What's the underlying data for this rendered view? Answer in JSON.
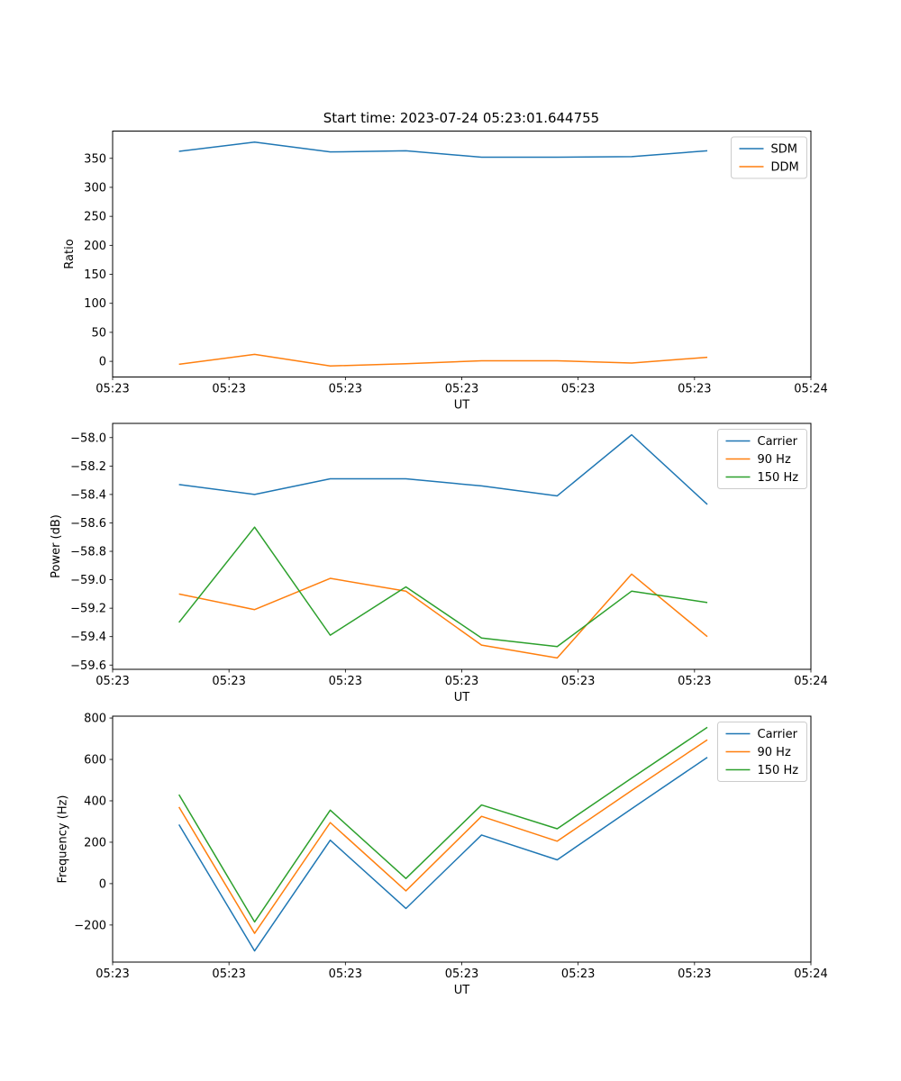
{
  "figure": {
    "title": "Start time: 2023-07-24 05:23:01.644755",
    "background": "#ffffff"
  },
  "colors": {
    "blue": "#1f77b4",
    "orange": "#ff7f0e",
    "green": "#2ca02c",
    "frame": "#000000",
    "legend_border": "#cccccc"
  },
  "chart_data": [
    {
      "type": "line",
      "title": "",
      "xlabel": "UT",
      "ylabel": "Ratio",
      "xlim_seconds": [
        0,
        60
      ],
      "xticks_seconds": [
        0,
        10,
        20,
        30,
        40,
        50,
        60
      ],
      "xtick_labels": [
        "05:23",
        "05:23",
        "05:23",
        "05:23",
        "05:23",
        "05:23",
        "05:24"
      ],
      "ylim": [
        -27,
        397
      ],
      "yticks": [
        0,
        50,
        100,
        150,
        200,
        250,
        300,
        350
      ],
      "ytick_labels": [
        "0",
        "50",
        "100",
        "150",
        "200",
        "250",
        "300",
        "350"
      ],
      "grid": false,
      "legend_position": "upper right",
      "x_seconds": [
        5.7,
        12.2,
        18.7,
        25.2,
        31.7,
        38.2,
        44.6,
        51.1
      ],
      "series": [
        {
          "name": "SDM",
          "color": "#1f77b4",
          "values": [
            362,
            378,
            361,
            363,
            352,
            352,
            353,
            363
          ]
        },
        {
          "name": "DDM",
          "color": "#ff7f0e",
          "values": [
            -5,
            12,
            -8,
            -4,
            1,
            1,
            -3,
            7
          ]
        }
      ]
    },
    {
      "type": "line",
      "title": "",
      "xlabel": "UT",
      "ylabel": "Power (dB)",
      "xlim_seconds": [
        0,
        60
      ],
      "xticks_seconds": [
        0,
        10,
        20,
        30,
        40,
        50,
        60
      ],
      "xtick_labels": [
        "05:23",
        "05:23",
        "05:23",
        "05:23",
        "05:23",
        "05:23",
        "05:24"
      ],
      "ylim": [
        -59.63,
        -57.9
      ],
      "yticks": [
        -58.0,
        -58.2,
        -58.4,
        -58.6,
        -58.8,
        -59.0,
        -59.2,
        -59.4,
        -59.6
      ],
      "ytick_labels": [
        "−58.0",
        "−58.2",
        "−58.4",
        "−58.6",
        "−58.8",
        "−59.0",
        "−59.2",
        "−59.4",
        "−59.6"
      ],
      "grid": false,
      "legend_position": "upper right",
      "x_seconds": [
        5.7,
        12.2,
        18.7,
        25.2,
        31.7,
        38.2,
        44.6,
        51.1
      ],
      "series": [
        {
          "name": "Carrier",
          "color": "#1f77b4",
          "values": [
            -58.33,
            -58.4,
            -58.29,
            -58.29,
            -58.34,
            -58.41,
            -57.98,
            -58.47
          ]
        },
        {
          "name": "90 Hz",
          "color": "#ff7f0e",
          "values": [
            -59.1,
            -59.21,
            -58.99,
            -59.08,
            -59.46,
            -59.55,
            -58.96,
            -59.4
          ]
        },
        {
          "name": "150 Hz",
          "color": "#2ca02c",
          "values": [
            -59.3,
            -58.63,
            -59.39,
            -59.05,
            -59.41,
            -59.47,
            -59.08,
            -59.16
          ]
        }
      ]
    },
    {
      "type": "line",
      "title": "",
      "xlabel": "UT",
      "ylabel": "Frequency (Hz)",
      "xlim_seconds": [
        0,
        60
      ],
      "xticks_seconds": [
        0,
        10,
        20,
        30,
        40,
        50,
        60
      ],
      "xtick_labels": [
        "05:23",
        "05:23",
        "05:23",
        "05:23",
        "05:23",
        "05:23",
        "05:24"
      ],
      "ylim": [
        -379,
        809
      ],
      "yticks": [
        -200,
        0,
        200,
        400,
        600,
        800
      ],
      "ytick_labels": [
        "−200",
        "0",
        "200",
        "400",
        "600",
        "800"
      ],
      "grid": false,
      "legend_position": "upper right",
      "x_seconds": [
        5.7,
        12.2,
        18.7,
        25.2,
        31.7,
        38.2,
        44.6,
        51.1
      ],
      "series": [
        {
          "name": "Carrier",
          "color": "#1f77b4",
          "values": [
            285,
            -325,
            210,
            -120,
            235,
            115,
            362,
            610
          ]
        },
        {
          "name": "90 Hz",
          "color": "#ff7f0e",
          "values": [
            370,
            -240,
            295,
            -35,
            325,
            205,
            450,
            695
          ]
        },
        {
          "name": "150 Hz",
          "color": "#2ca02c",
          "values": [
            430,
            -185,
            355,
            25,
            380,
            265,
            510,
            755
          ]
        }
      ]
    }
  ]
}
